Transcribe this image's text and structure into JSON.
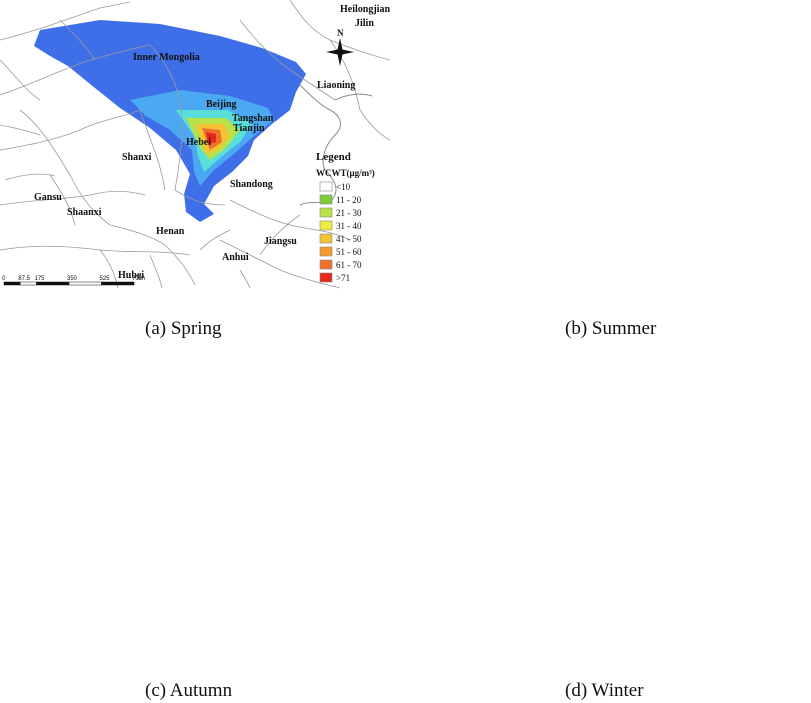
{
  "panels": [
    {
      "id": "a",
      "caption": "(a)  Spring"
    },
    {
      "id": "b",
      "caption": "(b)  Summer"
    },
    {
      "id": "c",
      "caption": "(c)  Autumn"
    },
    {
      "id": "d",
      "caption": "(d)  Winter"
    }
  ],
  "place_labels": {
    "heilongjiang": "Heilongjiang",
    "jilin": "Jilin",
    "inner_mongolia": "Inner Mongolia",
    "liaoning": "Liaoning",
    "beijing": "Beijing",
    "tangshan": "Tangshan",
    "tianjin": "Tianjin",
    "hebei": "Hebei",
    "shanxi": "Shanxi",
    "shandong": "Shandong",
    "gansu": "Gansu",
    "shaanxi": "Shaanxi",
    "henan": "Henan",
    "jiangsu": "Jiangsu",
    "anhui": "Anhui",
    "hubei": "Hubei"
  },
  "legend": {
    "title": "Legend",
    "unit": "WCWT(μg/m³)",
    "items": [
      {
        "label": "<10",
        "color": "#ffffff"
      },
      {
        "label": "11 - 20",
        "color": "#7ecb3c"
      },
      {
        "label": "21 - 30",
        "color": "#b8e04a"
      },
      {
        "label": "31 - 40",
        "color": "#eded3e"
      },
      {
        "label": "41 - 50",
        "color": "#f4c333"
      },
      {
        "label": "51 - 60",
        "color": "#f39a2e"
      },
      {
        "label": "61 - 70",
        "color": "#ef6f2b"
      },
      {
        "label": ">71",
        "color": "#e8261e"
      }
    ]
  },
  "scale_bar": {
    "ticks": [
      "0",
      "87.5",
      "175",
      "350",
      "525",
      "700"
    ],
    "unit": "km"
  },
  "north_arrow": "N"
}
